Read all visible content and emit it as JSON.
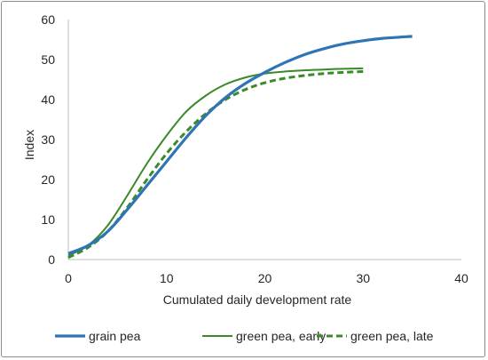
{
  "chart_data": {
    "type": "line",
    "xlabel": "Cumulated daily development rate",
    "ylabel": "Index",
    "xlim": [
      0,
      40
    ],
    "ylim": [
      0,
      60
    ],
    "x_ticks": [
      0,
      10,
      20,
      30,
      40
    ],
    "y_ticks": [
      0,
      10,
      20,
      30,
      40,
      50,
      60
    ],
    "grid": false,
    "legend_position": "bottom",
    "series": [
      {
        "name": "grain pea",
        "color": "#2e75b6",
        "line_style": "solid",
        "x": [
          0,
          2,
          4,
          6,
          8,
          10,
          12,
          14,
          16,
          18,
          20,
          22,
          24,
          26,
          28,
          30,
          32,
          35
        ],
        "y": [
          1.5,
          3.5,
          7,
          12.5,
          18.5,
          24.5,
          30.5,
          36,
          40.5,
          44,
          46.8,
          49.2,
          51.2,
          52.7,
          53.9,
          54.7,
          55.3,
          55.8
        ]
      },
      {
        "name": "green pea, early",
        "color": "#3a8a28",
        "line_style": "solid",
        "x": [
          0,
          2,
          4,
          6,
          8,
          10,
          12,
          14,
          16,
          18,
          20,
          22,
          24,
          26,
          28,
          30
        ],
        "y": [
          1,
          3.5,
          8.5,
          16,
          24,
          31,
          37,
          41,
          43.8,
          45.5,
          46.5,
          47,
          47.3,
          47.5,
          47.7,
          47.8
        ]
      },
      {
        "name": "green pea, late",
        "color": "#3a8a28",
        "line_style": "dashed",
        "x": [
          0,
          2,
          4,
          6,
          8,
          10,
          12,
          14,
          16,
          18,
          20,
          22,
          24,
          26,
          28,
          30
        ],
        "y": [
          0.5,
          3,
          7,
          13,
          20,
          26.5,
          32,
          36.5,
          40,
          42.5,
          44.2,
          45.3,
          46,
          46.5,
          46.8,
          47
        ]
      }
    ]
  }
}
